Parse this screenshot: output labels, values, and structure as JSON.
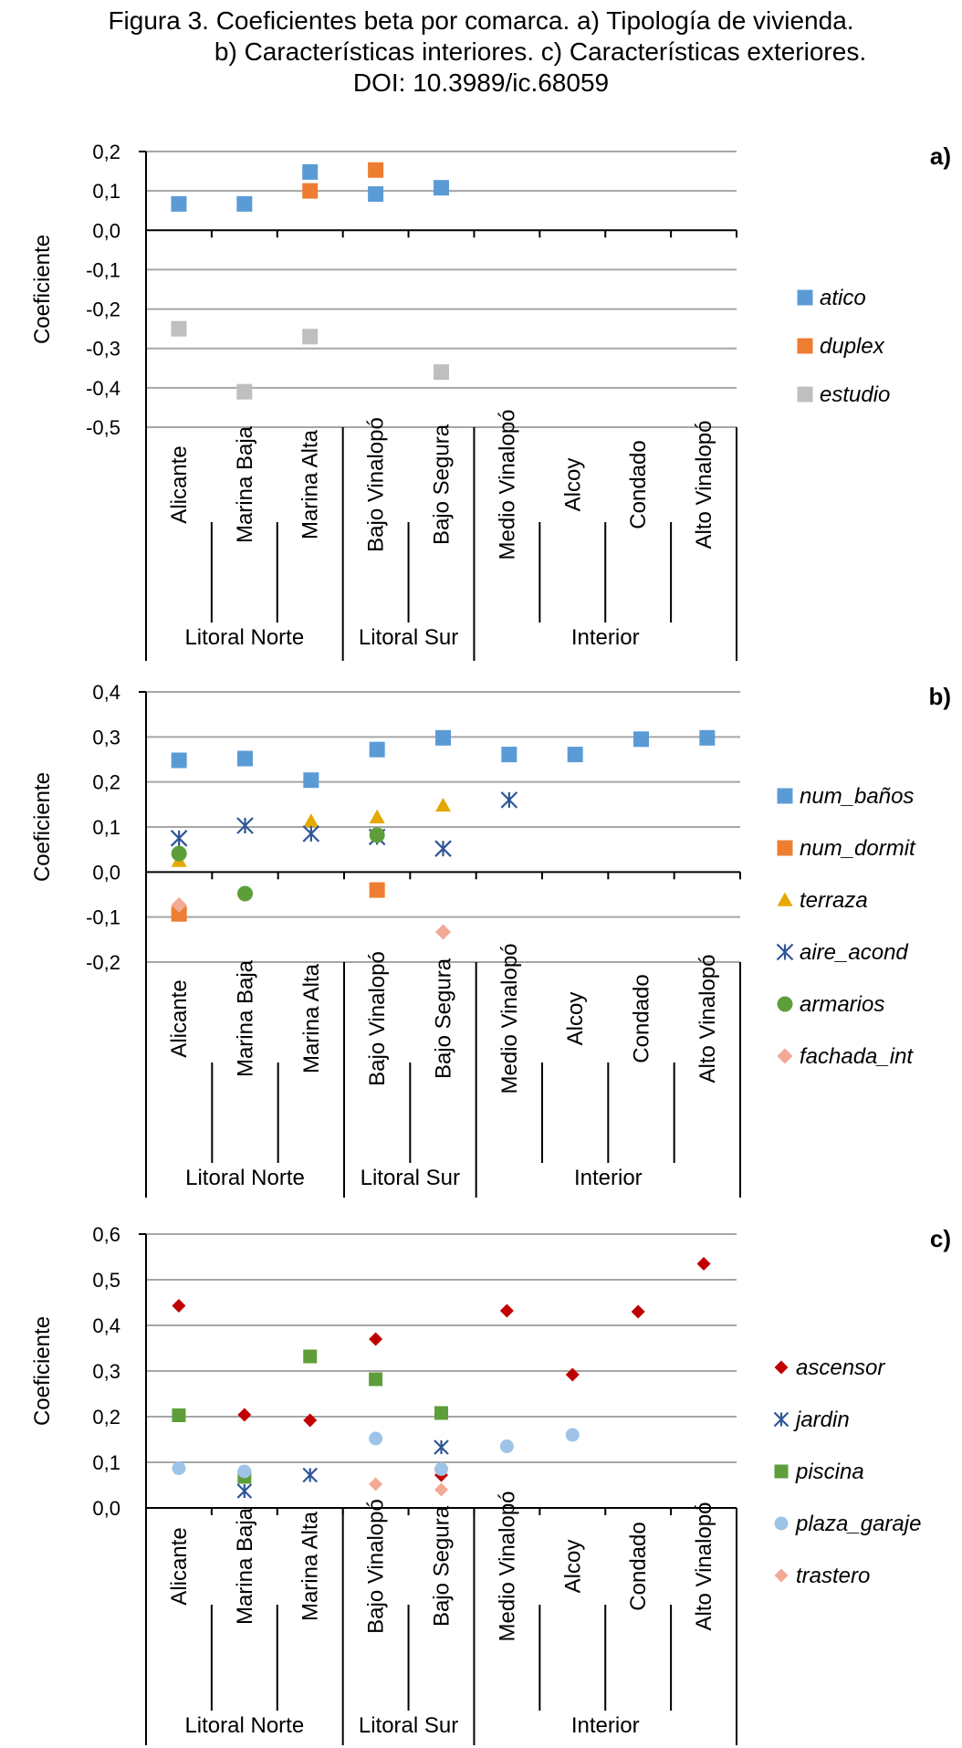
{
  "figure_title": {
    "line1": "Figura 3. Coeficientes beta por comarca. a) Tipología de vivienda.",
    "line2": "b) Características interiores. c) Características exteriores.",
    "line3": "DOI: 10.3989/ic.68059"
  },
  "chart_data": [
    {
      "type": "scatter",
      "panel_label": "a)",
      "ylabel": "Coeficiente",
      "ylim": [
        -0.5,
        0.2
      ],
      "yticks": [
        "0,2",
        "0,1",
        "0,0",
        "-0,1",
        "-0,2",
        "-0,3",
        "-0,4",
        "-0,5"
      ],
      "grid": true,
      "legend_position": "right",
      "categories": [
        "Alicante",
        "Marina Baja",
        "Marina Alta",
        "Bajo Vinalopó",
        "Bajo Segura",
        "Medio Vinalopó",
        "Alcoy",
        "Condado",
        "Alto Vinalopó"
      ],
      "groups": [
        {
          "label": "Litoral Norte",
          "count": 3
        },
        {
          "label": "Litoral Sur",
          "count": 2
        },
        {
          "label": "Interior",
          "count": 4
        }
      ],
      "series": [
        {
          "name": "atico",
          "marker": "square",
          "color": "#5B9BD5",
          "values": [
            0.067,
            0.067,
            0.148,
            0.092,
            0.108,
            null,
            null,
            null,
            null
          ]
        },
        {
          "name": "duplex",
          "marker": "square",
          "color": "#ED7D31",
          "values": [
            null,
            null,
            0.1,
            0.153,
            null,
            null,
            null,
            null,
            null
          ]
        },
        {
          "name": "estudio",
          "marker": "square",
          "color": "#BFBFBF",
          "values": [
            -0.25,
            -0.41,
            -0.27,
            null,
            -0.36,
            null,
            null,
            null,
            null
          ]
        }
      ]
    },
    {
      "type": "scatter",
      "panel_label": "b)",
      "ylabel": "Coeficiente",
      "ylim": [
        -0.2,
        0.4
      ],
      "yticks": [
        "0,4",
        "0,3",
        "0,2",
        "0,1",
        "0,0",
        "-0,1",
        "-0,2"
      ],
      "grid": true,
      "legend_position": "right",
      "categories": [
        "Alicante",
        "Marina Baja",
        "Marina Alta",
        "Bajo Vinalopó",
        "Bajo Segura",
        "Medio Vinalopó",
        "Alcoy",
        "Condado",
        "Alto Vinalopó"
      ],
      "groups": [
        {
          "label": "Litoral Norte",
          "count": 3
        },
        {
          "label": "Litoral Sur",
          "count": 2
        },
        {
          "label": "Interior",
          "count": 4
        }
      ],
      "series": [
        {
          "name": "num_baños",
          "marker": "square",
          "color": "#5B9BD5",
          "values": [
            0.248,
            0.252,
            0.204,
            0.272,
            0.298,
            0.261,
            0.261,
            0.295,
            0.298
          ]
        },
        {
          "name": "num_dormit",
          "marker": "square",
          "color": "#ED7D31",
          "values": [
            -0.093,
            null,
            null,
            -0.04,
            null,
            null,
            null,
            null,
            null
          ]
        },
        {
          "name": "terraza",
          "marker": "triangle",
          "color": "#E5A800",
          "values": [
            0.025,
            null,
            0.113,
            0.122,
            0.148,
            null,
            null,
            null,
            null
          ]
        },
        {
          "name": "aire_acond",
          "marker": "asterisk",
          "color": "#2E5597",
          "values": [
            0.075,
            0.103,
            0.085,
            0.078,
            0.052,
            0.16,
            null,
            null,
            null
          ]
        },
        {
          "name": "armarios",
          "marker": "circle",
          "color": "#5E9E3A",
          "values": [
            0.041,
            -0.048,
            null,
            0.082,
            null,
            null,
            null,
            null,
            null
          ]
        },
        {
          "name": "fachada_int",
          "marker": "diamond",
          "color": "#F4A896",
          "values": [
            -0.073,
            null,
            null,
            null,
            -0.133,
            null,
            null,
            null,
            null
          ]
        }
      ]
    },
    {
      "type": "scatter",
      "panel_label": "c)",
      "ylabel": "Coeficiente",
      "ylim": [
        0.0,
        0.6
      ],
      "yticks": [
        "0,6",
        "0,5",
        "0,4",
        "0,3",
        "0,2",
        "0,1",
        "0,0"
      ],
      "grid": true,
      "legend_position": "right",
      "categories": [
        "Alicante",
        "Marina Baja",
        "Marina Alta",
        "Bajo Vinalopó",
        "Bajo Segura",
        "Medio Vinalopó",
        "Alcoy",
        "Condado",
        "Alto Vinalopó"
      ],
      "groups": [
        {
          "label": "Litoral Norte",
          "count": 3
        },
        {
          "label": "Litoral Sur",
          "count": 2
        },
        {
          "label": "Interior",
          "count": 4
        }
      ],
      "series": [
        {
          "name": "ascensor",
          "marker": "diamond",
          "color": "#C00000",
          "values": [
            0.443,
            0.204,
            0.192,
            0.37,
            0.072,
            0.432,
            0.292,
            0.43,
            0.535
          ]
        },
        {
          "name": "jardin",
          "marker": "asterisk",
          "color": "#2E5597",
          "values": [
            null,
            0.037,
            0.072,
            null,
            0.133,
            null,
            null,
            null,
            null
          ]
        },
        {
          "name": "piscina",
          "marker": "square",
          "color": "#5E9E3A",
          "values": [
            0.203,
            0.068,
            0.332,
            0.282,
            0.208,
            null,
            null,
            null,
            null
          ]
        },
        {
          "name": "plaza_garaje",
          "marker": "circle",
          "color": "#9DC3E6",
          "values": [
            0.087,
            0.08,
            null,
            0.152,
            0.085,
            0.135,
            0.16,
            null,
            null
          ]
        },
        {
          "name": "trastero",
          "marker": "diamond",
          "color": "#F4A896",
          "values": [
            null,
            null,
            null,
            0.052,
            0.04,
            null,
            null,
            null,
            null
          ]
        }
      ]
    }
  ]
}
